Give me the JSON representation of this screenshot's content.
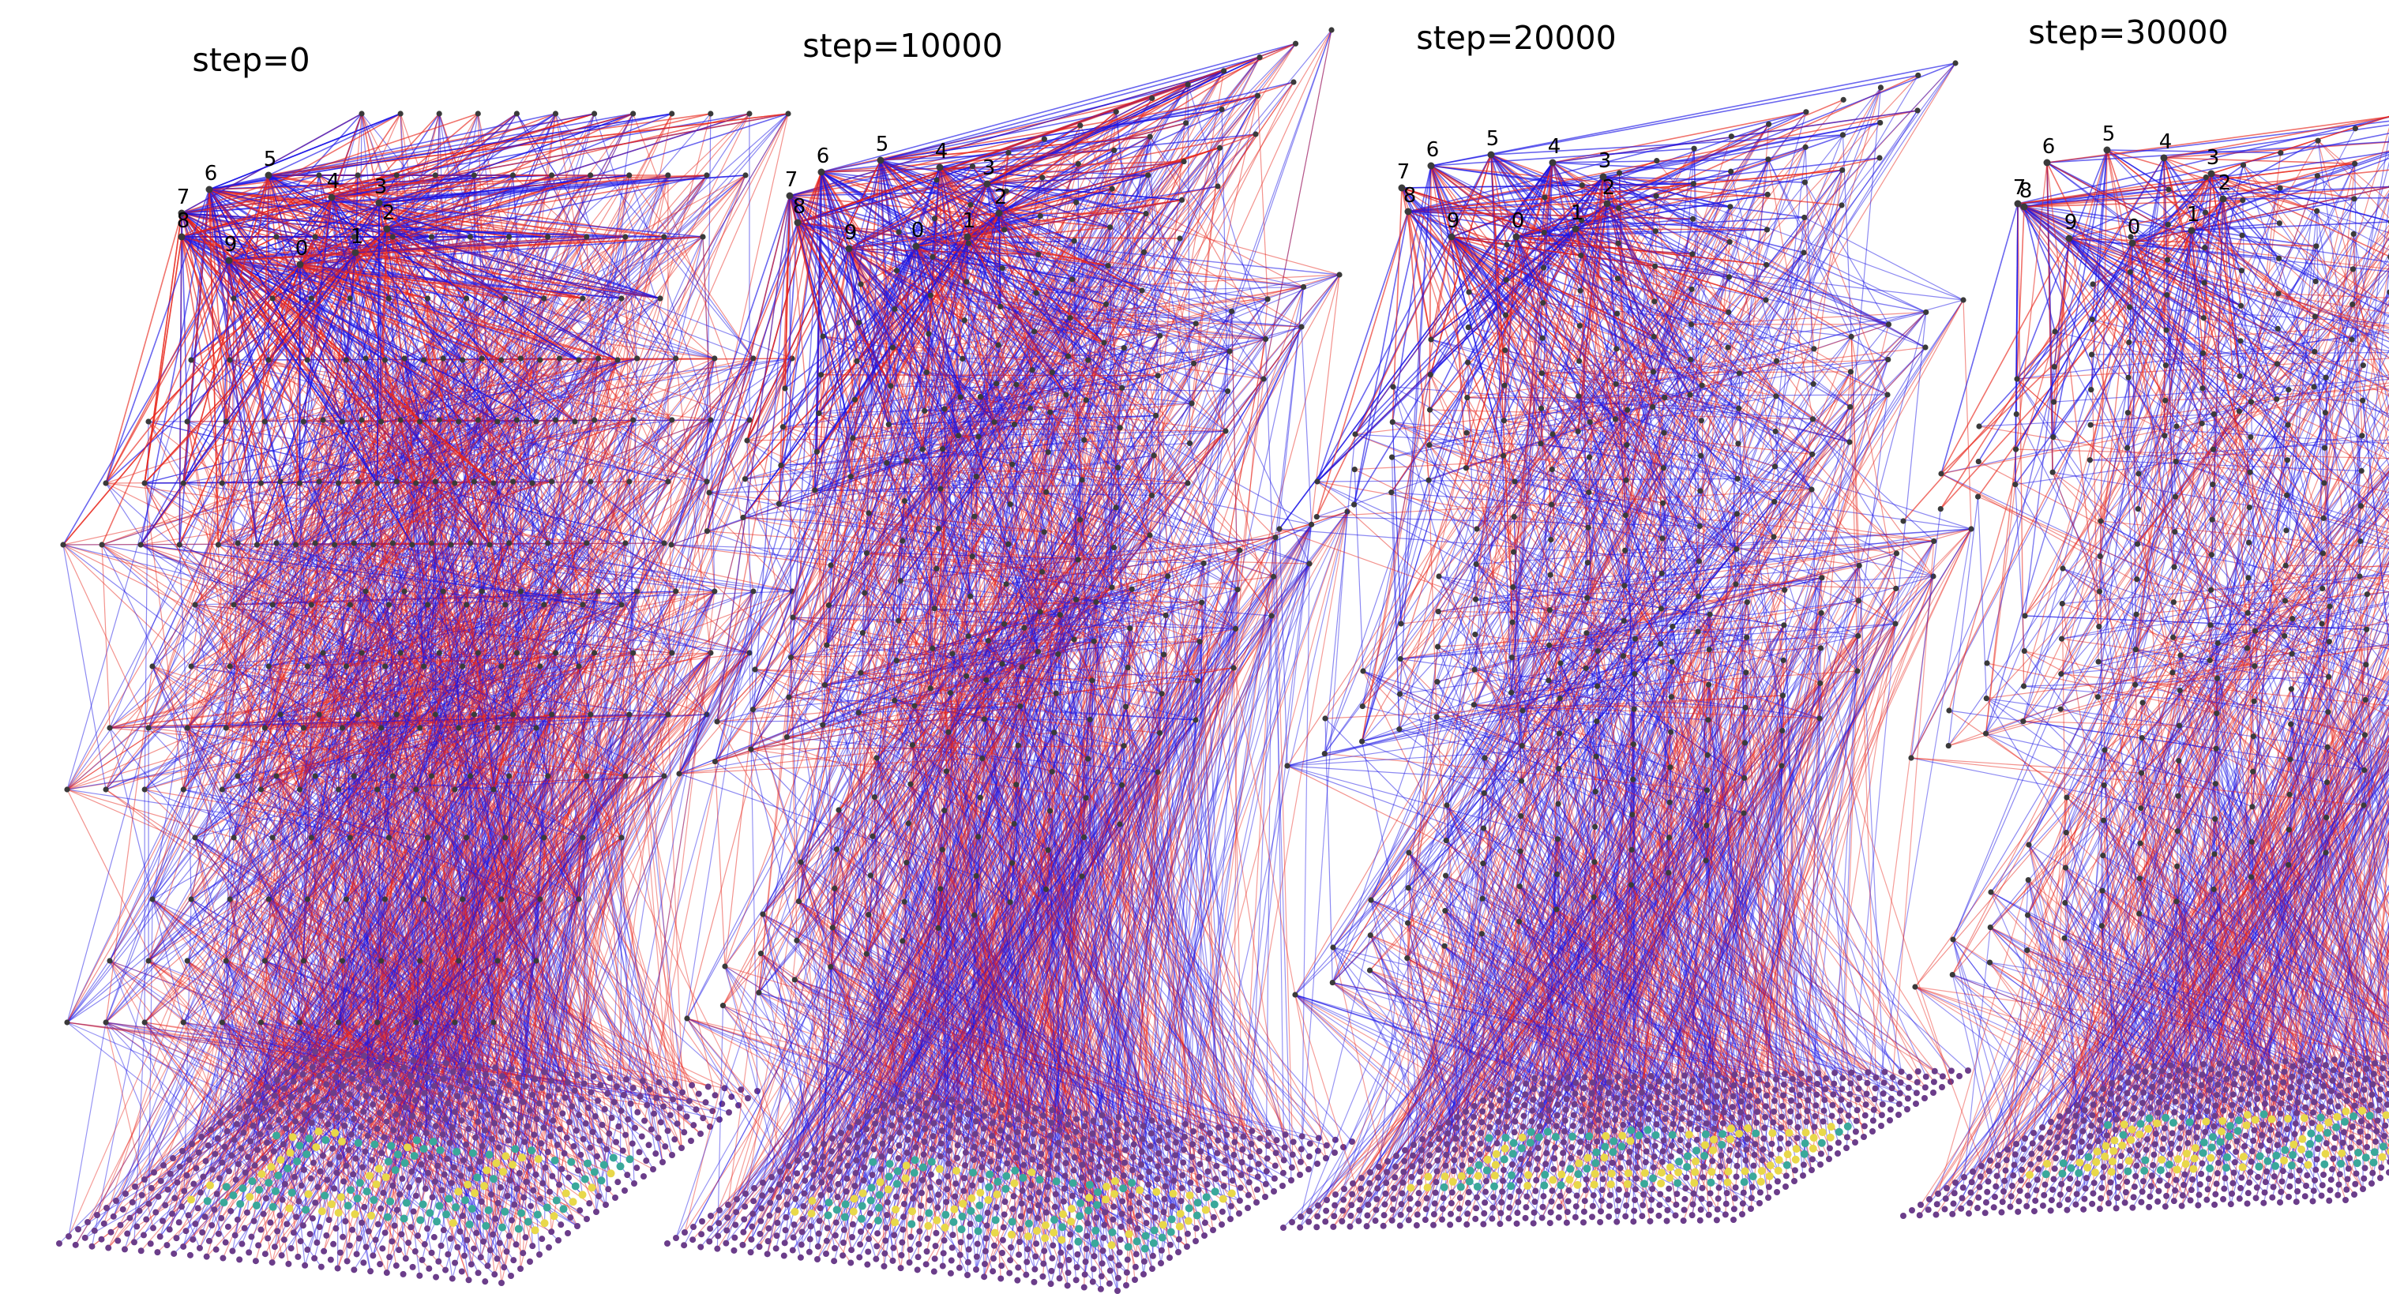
{
  "figure": {
    "panels": [
      {
        "title": "step=0",
        "step": 0
      },
      {
        "title": "step=10000",
        "step": 10000
      },
      {
        "title": "step=20000",
        "step": 20000
      },
      {
        "title": "step=30000",
        "step": 30000
      }
    ],
    "output_labels": [
      "7",
      "6",
      "5",
      "4",
      "3",
      "8",
      "9",
      "0",
      "1",
      "2"
    ],
    "colors": {
      "positive_edge": "#e8261c",
      "negative_edge": "#1a14e6",
      "node": "#3a3a3a",
      "input_node": "#6b3d8a",
      "digit_highlight": "#e8d84a",
      "digit_mid": "#3aa89a"
    },
    "input_image_digits": "2023"
  }
}
